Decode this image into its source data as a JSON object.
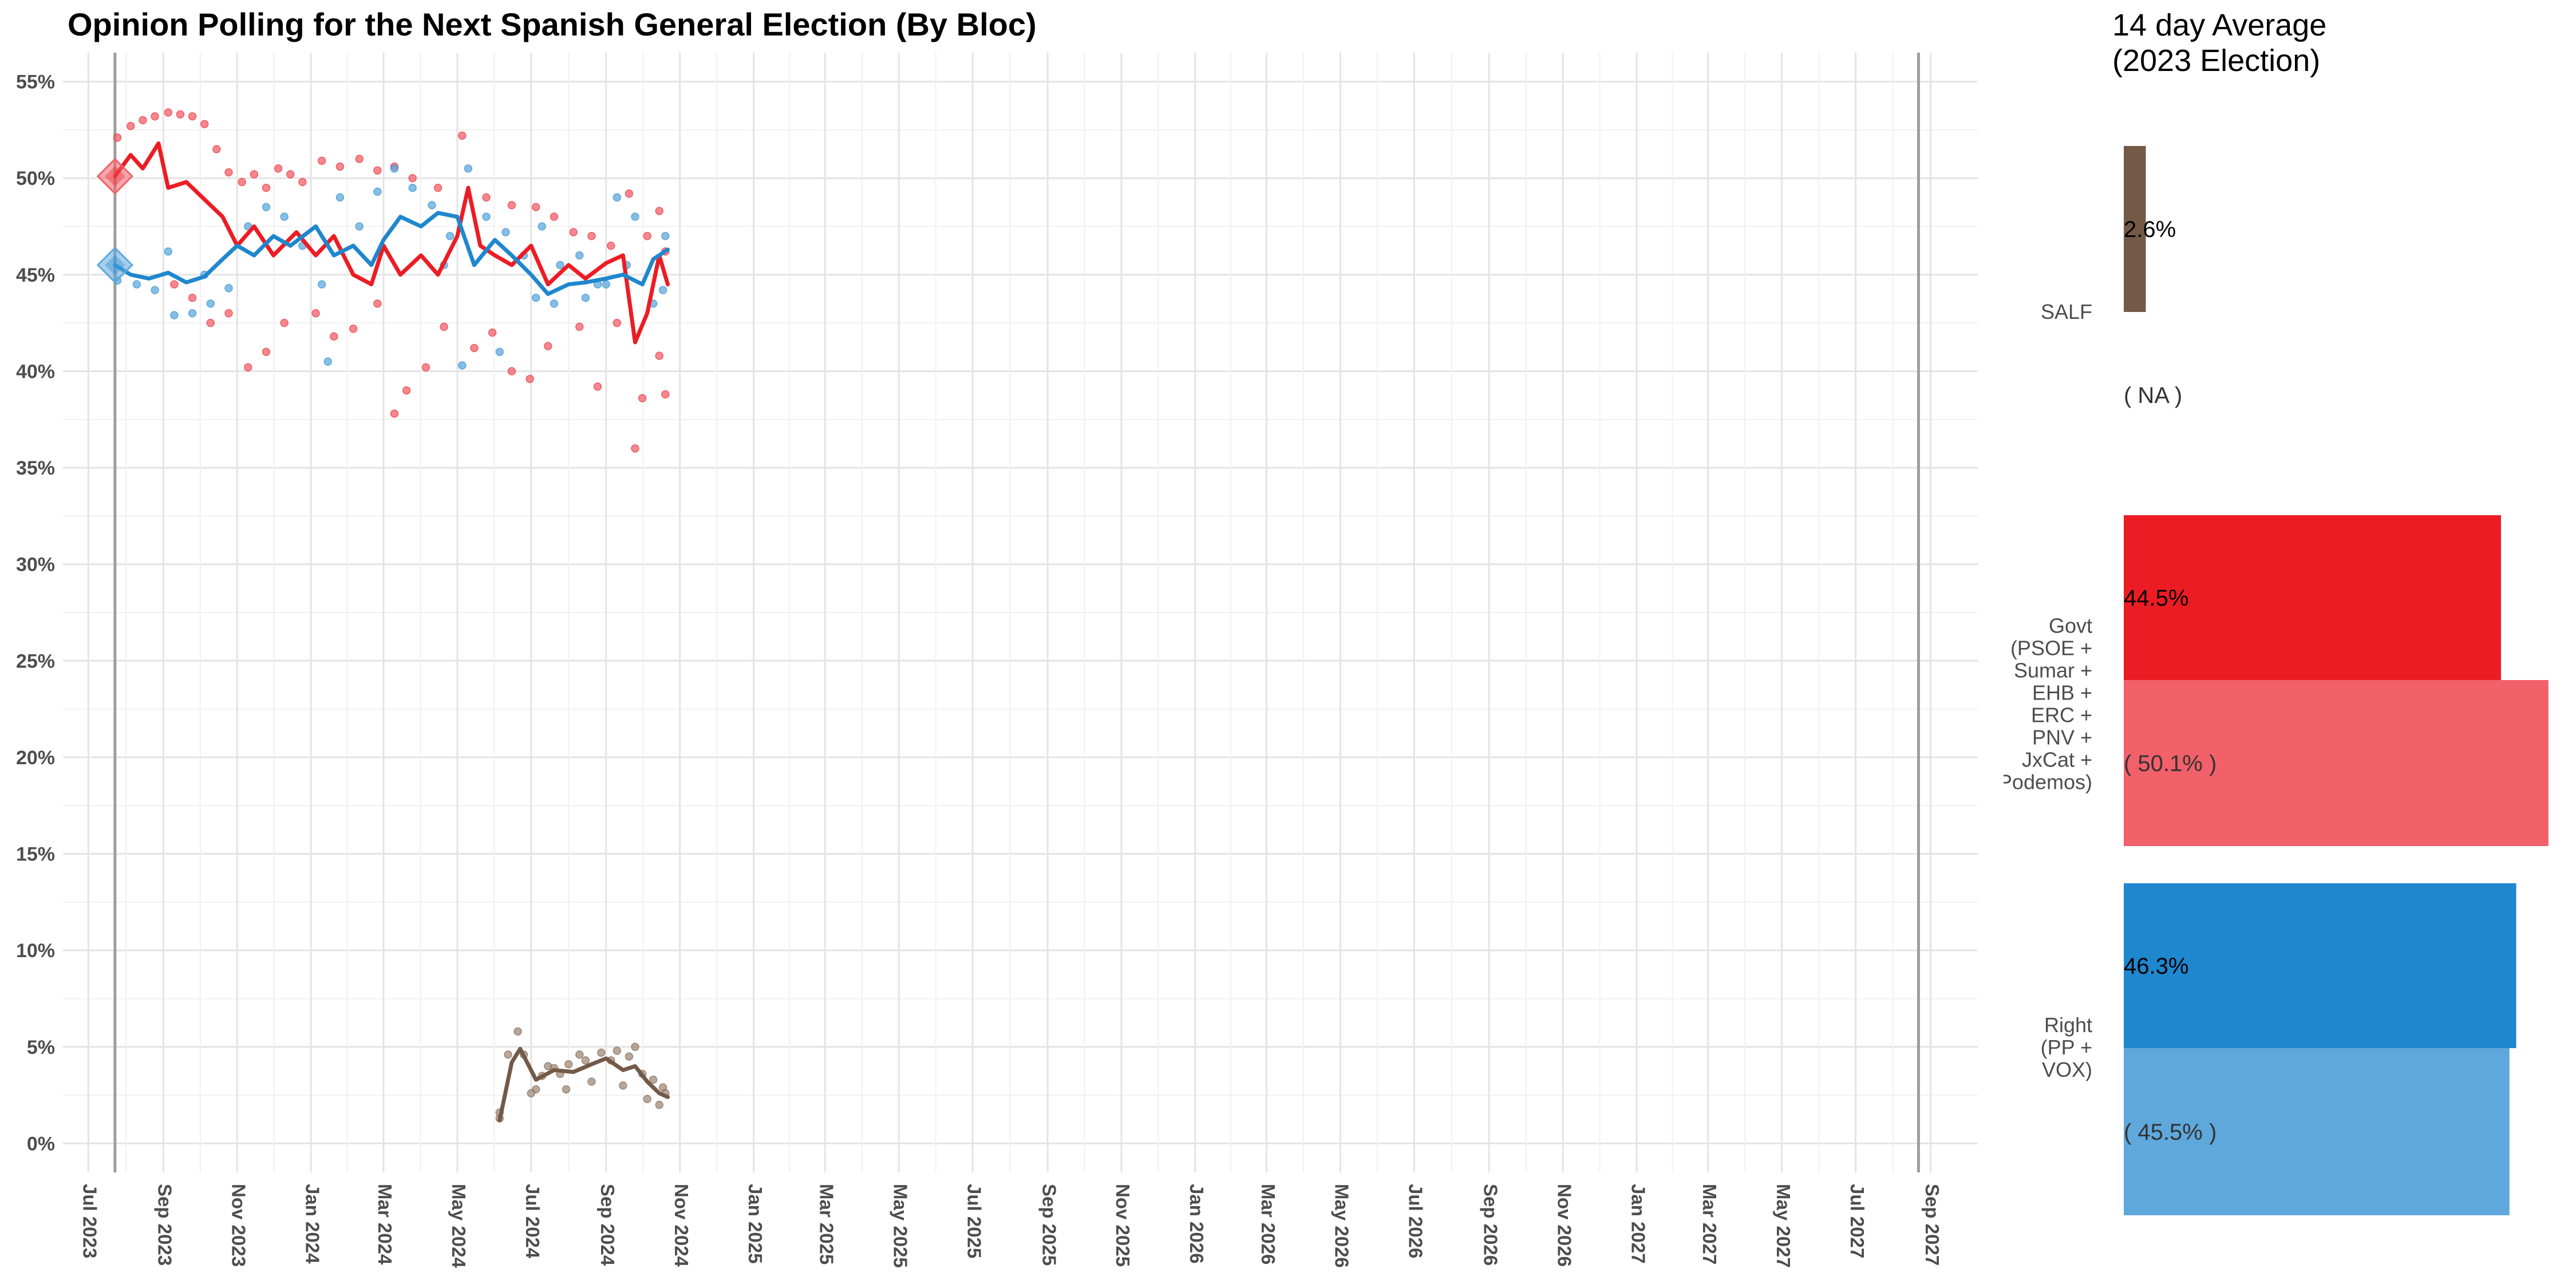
{
  "chart_data": [
    {
      "type": "line",
      "title": "Opinion Polling for the Next Spanish General Election (By Bloc)",
      "xlabel": "",
      "ylabel": "",
      "x_range": [
        "2023-06-10",
        "2027-10-10"
      ],
      "ylim": [
        -1.5,
        56.5
      ],
      "y_ticks": [
        "0%",
        "5%",
        "10%",
        "15%",
        "20%",
        "25%",
        "30%",
        "35%",
        "40%",
        "45%",
        "50%",
        "55%"
      ],
      "y_tick_values": [
        0,
        5,
        10,
        15,
        20,
        25,
        30,
        35,
        40,
        45,
        50,
        55
      ],
      "x_ticks": [
        "Jul 2023",
        "Sep 2023",
        "Nov 2023",
        "Jan 2024",
        "Mar 2024",
        "May 2024",
        "Jul 2024",
        "Sep 2024",
        "Nov 2024",
        "Jan 2025",
        "Mar 2025",
        "May 2025",
        "Jul 2025",
        "Sep 2025",
        "Nov 2025",
        "Jan 2026",
        "Mar 2026",
        "May 2026",
        "Jul 2026",
        "Sep 2026",
        "Nov 2026",
        "Jan 2027",
        "Mar 2027",
        "May 2027",
        "Jul 2027",
        "Sep 2027"
      ],
      "x_tick_dates": [
        "2023-07-01",
        "2023-09-01",
        "2023-11-01",
        "2024-01-01",
        "2024-03-01",
        "2024-05-01",
        "2024-07-01",
        "2024-09-01",
        "2024-11-01",
        "2025-01-01",
        "2025-03-01",
        "2025-05-01",
        "2025-07-01",
        "2025-09-01",
        "2025-11-01",
        "2026-01-01",
        "2026-03-01",
        "2026-05-01",
        "2026-07-01",
        "2026-09-01",
        "2026-11-01",
        "2027-01-01",
        "2027-03-01",
        "2027-05-01",
        "2027-07-01",
        "2027-09-01"
      ],
      "election_lines": [
        "2023-07-23",
        "2027-08-22"
      ],
      "grid": true,
      "series": [
        {
          "color": "#ED1C24",
          "point_color": "#F2606A",
          "election_marker": {
            "x": "2023-07-23",
            "y": 50.1
          },
          "line": [
            [
              "2023-07-23",
              50.1
            ],
            [
              "2023-08-05",
              51.2
            ],
            [
              "2023-08-15",
              50.5
            ],
            [
              "2023-08-28",
              51.8
            ],
            [
              "2023-09-05",
              49.5
            ],
            [
              "2023-09-20",
              49.8
            ],
            [
              "2023-10-05",
              48.9
            ],
            [
              "2023-10-20",
              48.0
            ],
            [
              "2023-11-01",
              46.5
            ],
            [
              "2023-11-15",
              47.5
            ],
            [
              "2023-12-01",
              46.0
            ],
            [
              "2023-12-20",
              47.2
            ],
            [
              "2024-01-05",
              46.0
            ],
            [
              "2024-01-20",
              47.0
            ],
            [
              "2024-02-05",
              45.0
            ],
            [
              "2024-02-20",
              44.5
            ],
            [
              "2024-03-01",
              46.5
            ],
            [
              "2024-03-15",
              45.0
            ],
            [
              "2024-04-01",
              46.0
            ],
            [
              "2024-04-15",
              45.0
            ],
            [
              "2024-05-01",
              47.0
            ],
            [
              "2024-05-10",
              49.5
            ],
            [
              "2024-05-20",
              46.5
            ],
            [
              "2024-06-01",
              46.0
            ],
            [
              "2024-06-15",
              45.5
            ],
            [
              "2024-07-01",
              46.5
            ],
            [
              "2024-07-15",
              44.5
            ],
            [
              "2024-08-01",
              45.5
            ],
            [
              "2024-08-15",
              44.8
            ],
            [
              "2024-09-01",
              45.6
            ],
            [
              "2024-09-15",
              46.0
            ],
            [
              "2024-09-25",
              41.5
            ],
            [
              "2024-10-05",
              43.0
            ],
            [
              "2024-10-15",
              46.0
            ],
            [
              "2024-10-22",
              44.5
            ]
          ],
          "points": [
            [
              "2023-07-25",
              52.1
            ],
            [
              "2023-08-05",
              52.7
            ],
            [
              "2023-08-15",
              53.0
            ],
            [
              "2023-08-25",
              53.2
            ],
            [
              "2023-09-05",
              53.4
            ],
            [
              "2023-09-15",
              53.3
            ],
            [
              "2023-09-25",
              53.2
            ],
            [
              "2023-10-05",
              52.8
            ],
            [
              "2023-10-15",
              51.5
            ],
            [
              "2023-10-25",
              50.3
            ],
            [
              "2023-11-05",
              49.8
            ],
            [
              "2023-11-15",
              50.2
            ],
            [
              "2023-11-25",
              49.5
            ],
            [
              "2023-12-05",
              50.5
            ],
            [
              "2023-12-15",
              50.2
            ],
            [
              "2023-12-25",
              49.8
            ],
            [
              "2024-01-10",
              50.9
            ],
            [
              "2024-01-25",
              50.6
            ],
            [
              "2024-02-10",
              51.0
            ],
            [
              "2024-02-25",
              50.4
            ],
            [
              "2024-03-10",
              50.6
            ],
            [
              "2024-03-25",
              50.0
            ],
            [
              "2024-04-15",
              49.5
            ],
            [
              "2024-05-05",
              52.2
            ],
            [
              "2024-05-25",
              49.0
            ],
            [
              "2024-06-15",
              48.6
            ],
            [
              "2024-07-05",
              48.5
            ],
            [
              "2024-07-20",
              48.0
            ],
            [
              "2024-08-05",
              47.2
            ],
            [
              "2024-08-20",
              47.0
            ],
            [
              "2024-09-05",
              46.5
            ],
            [
              "2024-09-20",
              49.2
            ],
            [
              "2024-10-05",
              47.0
            ],
            [
              "2024-10-15",
              48.3
            ],
            [
              "2023-09-10",
              44.5
            ],
            [
              "2023-09-25",
              43.8
            ],
            [
              "2023-10-10",
              42.5
            ],
            [
              "2023-10-25",
              43.0
            ],
            [
              "2023-11-10",
              40.2
            ],
            [
              "2023-11-25",
              41.0
            ],
            [
              "2023-12-10",
              42.5
            ],
            [
              "2024-01-05",
              43.0
            ],
            [
              "2024-01-20",
              41.8
            ],
            [
              "2024-02-05",
              42.2
            ],
            [
              "2024-02-25",
              43.5
            ],
            [
              "2024-03-10",
              37.8
            ],
            [
              "2024-03-20",
              39.0
            ],
            [
              "2024-04-05",
              40.2
            ],
            [
              "2024-04-20",
              42.3
            ],
            [
              "2024-05-15",
              41.2
            ],
            [
              "2024-05-30",
              42.0
            ],
            [
              "2024-06-15",
              40.0
            ],
            [
              "2024-06-30",
              39.6
            ],
            [
              "2024-07-15",
              41.3
            ],
            [
              "2024-08-10",
              42.3
            ],
            [
              "2024-08-25",
              39.2
            ],
            [
              "2024-09-10",
              42.5
            ],
            [
              "2024-09-25",
              36.0
            ],
            [
              "2024-10-01",
              38.6
            ],
            [
              "2024-10-15",
              40.8
            ],
            [
              "2024-10-20",
              38.8
            ],
            [
              "2024-10-20",
              46.2
            ]
          ]
        },
        {
          "color": "#1F87CE",
          "point_color": "#5FA8DC",
          "election_marker": {
            "x": "2023-07-23",
            "y": 45.5
          },
          "line": [
            [
              "2023-07-23",
              45.5
            ],
            [
              "2023-08-05",
              45.0
            ],
            [
              "2023-08-20",
              44.8
            ],
            [
              "2023-09-05",
              45.1
            ],
            [
              "2023-09-20",
              44.6
            ],
            [
              "2023-10-05",
              44.9
            ],
            [
              "2023-10-20",
              45.8
            ],
            [
              "2023-11-01",
              46.5
            ],
            [
              "2023-11-15",
              46.0
            ],
            [
              "2023-12-01",
              47.0
            ],
            [
              "2023-12-15",
              46.5
            ],
            [
              "2024-01-05",
              47.5
            ],
            [
              "2024-01-20",
              46.0
            ],
            [
              "2024-02-05",
              46.5
            ],
            [
              "2024-02-20",
              45.5
            ],
            [
              "2024-03-01",
              46.8
            ],
            [
              "2024-03-15",
              48.0
            ],
            [
              "2024-04-01",
              47.5
            ],
            [
              "2024-04-15",
              48.2
            ],
            [
              "2024-05-01",
              48.0
            ],
            [
              "2024-05-15",
              45.5
            ],
            [
              "2024-06-01",
              46.8
            ],
            [
              "2024-06-15",
              46.0
            ],
            [
              "2024-07-01",
              45.0
            ],
            [
              "2024-07-15",
              44.0
            ],
            [
              "2024-08-01",
              44.5
            ],
            [
              "2024-08-15",
              44.6
            ],
            [
              "2024-09-01",
              44.8
            ],
            [
              "2024-09-15",
              45.0
            ],
            [
              "2024-10-01",
              44.5
            ],
            [
              "2024-10-10",
              45.8
            ],
            [
              "2024-10-22",
              46.3
            ]
          ],
          "points": [
            [
              "2023-07-25",
              44.7
            ],
            [
              "2023-08-10",
              44.5
            ],
            [
              "2023-08-25",
              44.2
            ],
            [
              "2023-09-10",
              42.9
            ],
            [
              "2023-09-25",
              43.0
            ],
            [
              "2023-10-10",
              43.5
            ],
            [
              "2023-10-25",
              44.3
            ],
            [
              "2023-11-10",
              47.5
            ],
            [
              "2023-11-25",
              48.5
            ],
            [
              "2023-12-10",
              48.0
            ],
            [
              "2023-12-25",
              46.5
            ],
            [
              "2024-01-10",
              44.5
            ],
            [
              "2024-01-25",
              49.0
            ],
            [
              "2024-02-10",
              47.5
            ],
            [
              "2024-02-25",
              49.3
            ],
            [
              "2024-03-10",
              50.5
            ],
            [
              "2024-03-25",
              49.5
            ],
            [
              "2024-04-10",
              48.6
            ],
            [
              "2024-04-25",
              47.0
            ],
            [
              "2024-05-10",
              50.5
            ],
            [
              "2024-05-25",
              48.0
            ],
            [
              "2024-06-10",
              47.2
            ],
            [
              "2024-06-25",
              46.0
            ],
            [
              "2024-07-10",
              47.5
            ],
            [
              "2024-07-25",
              45.5
            ],
            [
              "2024-08-10",
              46.0
            ],
            [
              "2024-08-25",
              44.5
            ],
            [
              "2024-09-10",
              49.0
            ],
            [
              "2024-09-25",
              48.0
            ],
            [
              "2024-10-10",
              43.5
            ],
            [
              "2024-10-20",
              47.0
            ],
            [
              "2023-09-05",
              46.2
            ],
            [
              "2023-10-05",
              45.0
            ],
            [
              "2024-01-15",
              40.5
            ],
            [
              "2024-04-20",
              45.5
            ],
            [
              "2024-05-05",
              40.3
            ],
            [
              "2024-06-05",
              41.0
            ],
            [
              "2024-07-05",
              43.8
            ],
            [
              "2024-07-20",
              43.5
            ],
            [
              "2024-08-15",
              43.8
            ],
            [
              "2024-09-01",
              44.5
            ],
            [
              "2024-09-18",
              45.5
            ],
            [
              "2024-10-18",
              44.2
            ]
          ]
        },
        {
          "color": "#735A47",
          "point_color": "#A18A78",
          "line": [
            [
              "2024-06-05",
              1.2
            ],
            [
              "2024-06-15",
              4.2
            ],
            [
              "2024-06-22",
              4.9
            ],
            [
              "2024-07-05",
              3.3
            ],
            [
              "2024-07-20",
              3.8
            ],
            [
              "2024-08-05",
              3.7
            ],
            [
              "2024-08-20",
              4.1
            ],
            [
              "2024-09-01",
              4.4
            ],
            [
              "2024-09-15",
              3.8
            ],
            [
              "2024-09-25",
              4.0
            ],
            [
              "2024-10-05",
              3.2
            ],
            [
              "2024-10-15",
              2.6
            ],
            [
              "2024-10-22",
              2.4
            ]
          ],
          "points": [
            [
              "2024-06-05",
              1.3
            ],
            [
              "2024-06-05",
              1.6
            ],
            [
              "2024-06-12",
              4.6
            ],
            [
              "2024-06-20",
              5.8
            ],
            [
              "2024-06-25",
              4.6
            ],
            [
              "2024-07-05",
              2.8
            ],
            [
              "2024-07-10",
              3.5
            ],
            [
              "2024-07-15",
              4.0
            ],
            [
              "2024-07-20",
              3.9
            ],
            [
              "2024-07-25",
              3.6
            ],
            [
              "2024-08-01",
              4.1
            ],
            [
              "2024-08-10",
              4.6
            ],
            [
              "2024-08-15",
              4.3
            ],
            [
              "2024-08-20",
              3.2
            ],
            [
              "2024-08-28",
              4.7
            ],
            [
              "2024-09-05",
              4.3
            ],
            [
              "2024-09-10",
              4.8
            ],
            [
              "2024-09-15",
              3.0
            ],
            [
              "2024-09-20",
              4.5
            ],
            [
              "2024-09-25",
              5.0
            ],
            [
              "2024-10-01",
              3.6
            ],
            [
              "2024-10-05",
              2.3
            ],
            [
              "2024-10-10",
              3.3
            ],
            [
              "2024-10-15",
              2.0
            ],
            [
              "2024-10-18",
              2.9
            ],
            [
              "2024-10-20",
              2.6
            ],
            [
              "2024-07-01",
              2.6
            ],
            [
              "2024-07-30",
              2.8
            ]
          ]
        }
      ]
    },
    {
      "type": "bar",
      "title": "14 day Average\n(2023 Election)",
      "orientation": "horizontal",
      "xlim": [
        0,
        52
      ],
      "categories": [
        "SALF",
        "Govt\n(PSOE +\nSumar +\nEHB +\nERC +\nPNV +\nJxCat +\nPodemos)",
        "Right\n(PP +\nVOX)"
      ],
      "series": [
        {
          "values": [
            2.6,
            44.5,
            46.3
          ],
          "labels": [
            "2.6%",
            "44.5%",
            "46.3%"
          ],
          "colors": [
            "#735A47",
            "#ED1C24",
            "#1F87CE"
          ]
        },
        {
          "values": [
            null,
            50.1,
            45.5
          ],
          "labels": [
            "( NA )",
            "( 50.1% )",
            "( 45.5% )"
          ],
          "colors": [
            "#A18A78",
            "#F2606A",
            "#5FA8DC"
          ]
        }
      ]
    }
  ]
}
